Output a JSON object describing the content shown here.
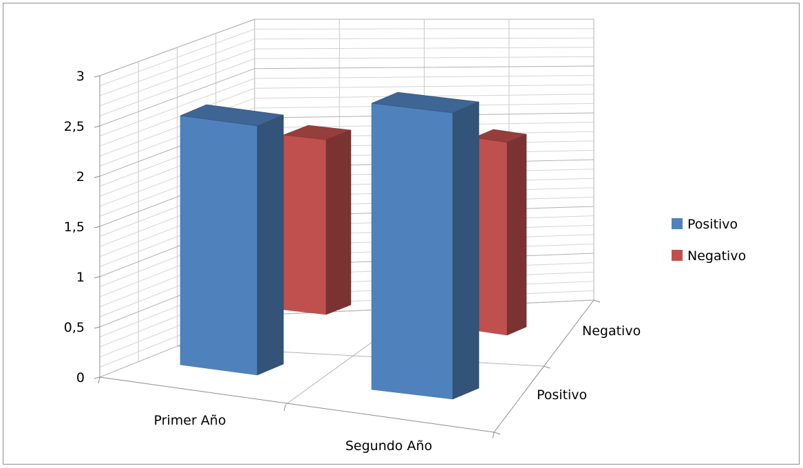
{
  "chart_data": {
    "type": "bar",
    "categories": [
      "Primer Año",
      "Segundo Año"
    ],
    "series": [
      {
        "name": "Positivo",
        "values": [
          2.55,
          2.75
        ],
        "color": "#4F81BD"
      },
      {
        "name": "Negativo",
        "values": [
          2.3,
          2.3
        ],
        "color": "#C0504D"
      }
    ],
    "depth_labels": [
      "Positivo",
      "Negativo"
    ],
    "ylim": [
      0,
      3
    ],
    "yticks": [
      "0",
      "0,5",
      "1",
      "1,5",
      "2",
      "2,5",
      "3"
    ],
    "grid": true,
    "legend": {
      "position": "right",
      "entries": [
        "Positivo",
        "Negativo"
      ]
    },
    "style": "3d-column"
  }
}
